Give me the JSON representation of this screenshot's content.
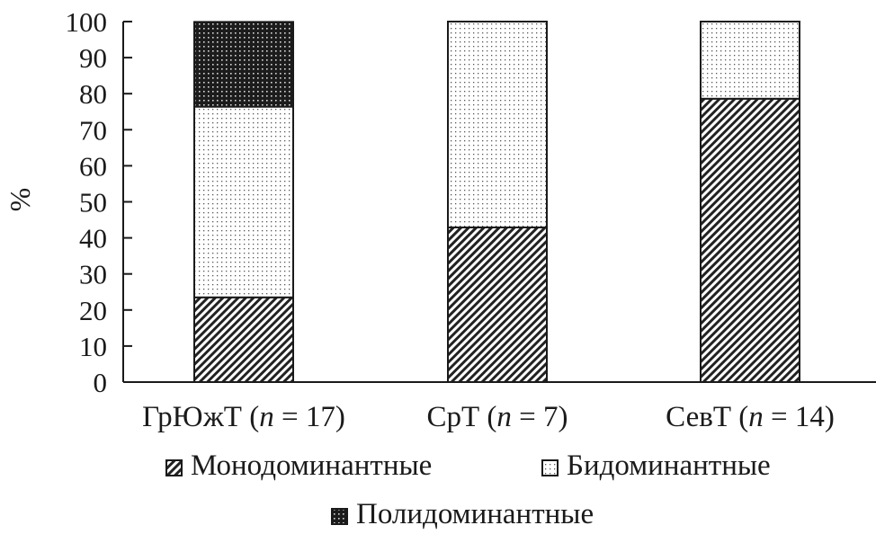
{
  "chart_data": {
    "type": "bar",
    "stacked": true,
    "ylabel": "%",
    "ylim": [
      0,
      100
    ],
    "yticks": [
      0,
      10,
      20,
      30,
      40,
      50,
      60,
      70,
      80,
      90,
      100
    ],
    "grid": false,
    "legend_position": "bottom",
    "categories": [
      {
        "prefix": "ГрЮжТ (",
        "n_symbol": "n",
        "suffix": " = 17)"
      },
      {
        "prefix": "СрТ (",
        "n_symbol": "n",
        "suffix": " = 7)"
      },
      {
        "prefix": "СевТ (",
        "n_symbol": "n",
        "suffix": " = 14)"
      }
    ],
    "series": [
      {
        "name": "Монодоминантные",
        "pattern": "diagonal-hatch",
        "values": [
          23.5,
          42.9,
          78.6
        ]
      },
      {
        "name": "Бидоминантные",
        "pattern": "light-dots",
        "values": [
          52.9,
          57.1,
          21.4
        ]
      },
      {
        "name": "Полидоминантные",
        "pattern": "dark-dots",
        "values": [
          23.5,
          0,
          0
        ]
      }
    ]
  }
}
